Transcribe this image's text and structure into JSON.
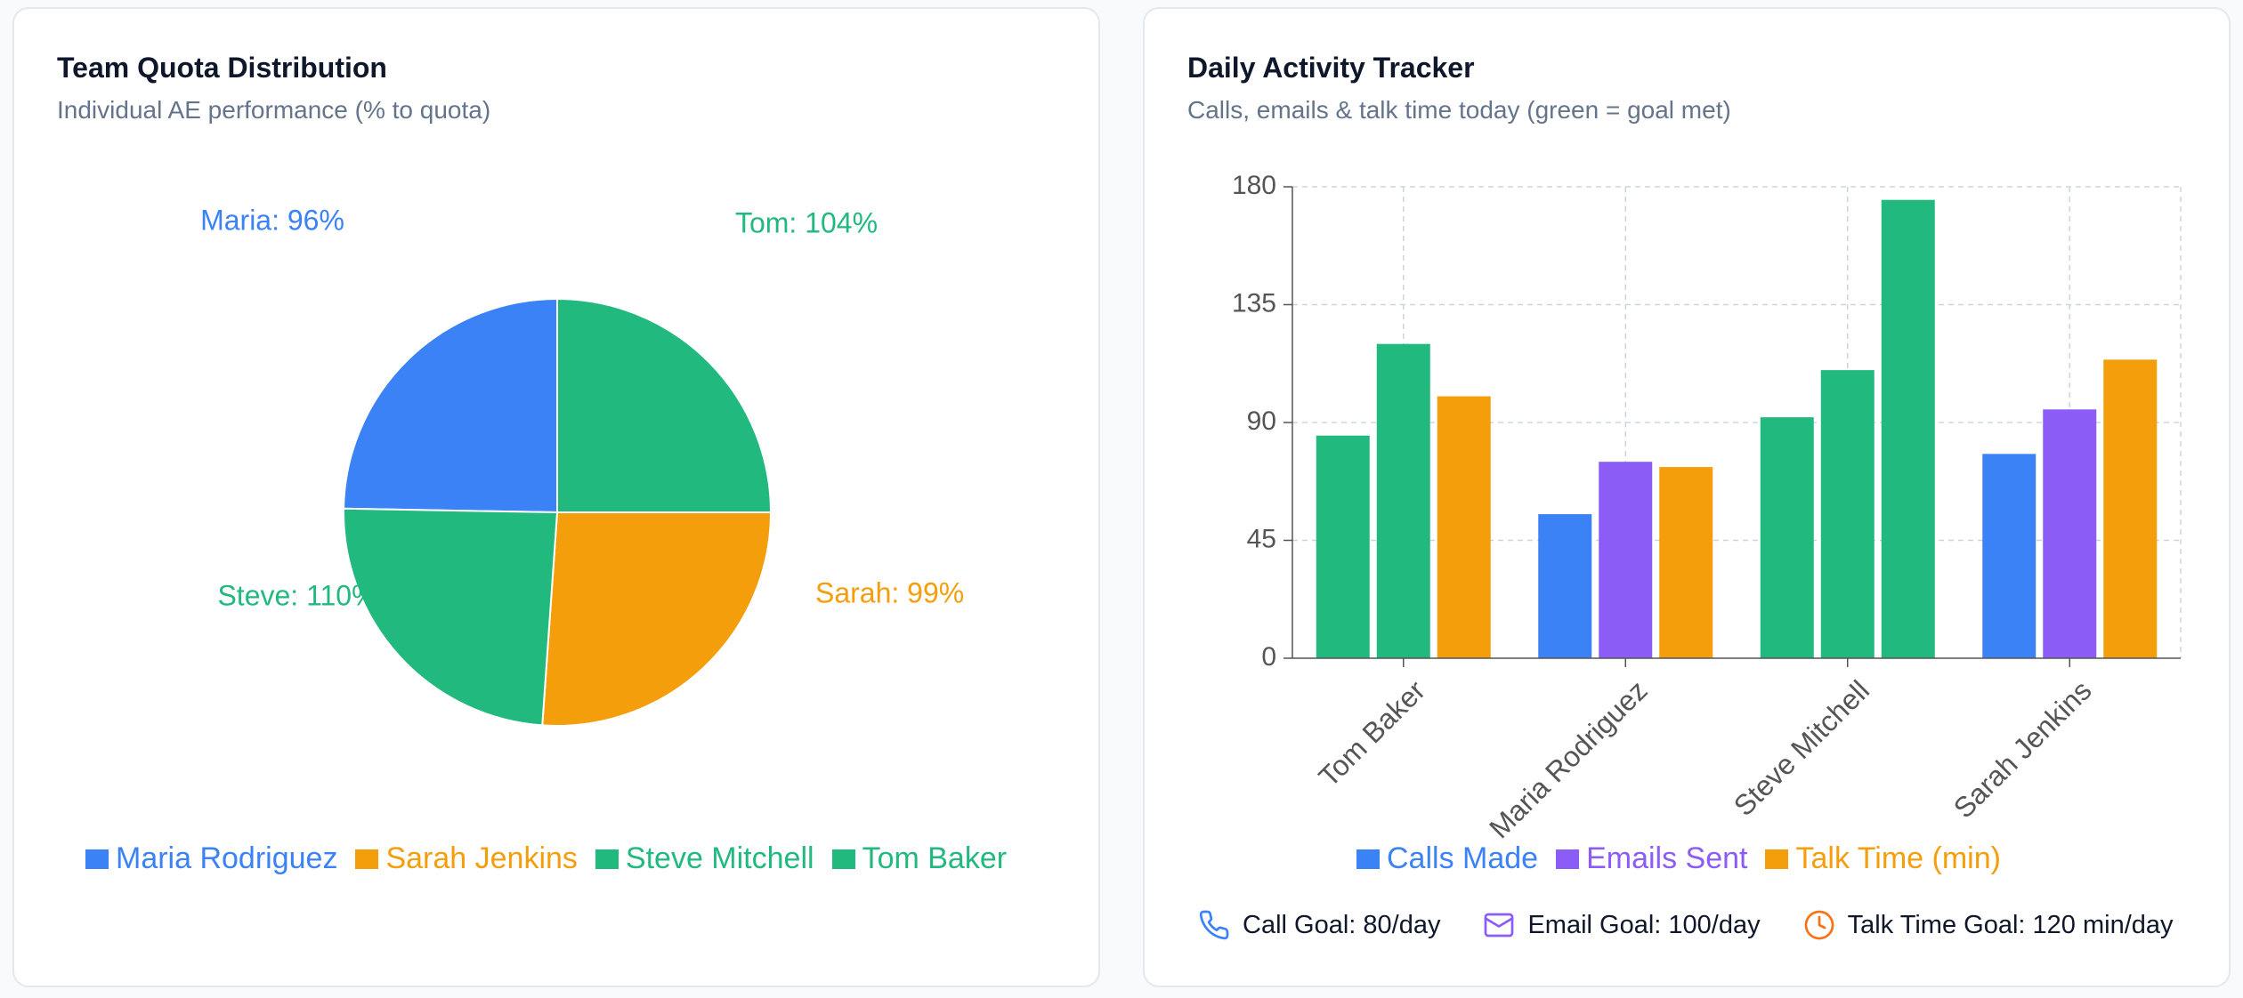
{
  "left_card": {
    "title": "Team Quota Distribution",
    "subtitle": "Individual AE performance (% to quota)"
  },
  "right_card": {
    "title": "Daily Activity Tracker",
    "subtitle": "Calls, emails & talk time today (green = goal met)"
  },
  "goals": [
    {
      "icon": "phone-icon",
      "color": "#3b82f6",
      "label": "Call Goal: 80/day"
    },
    {
      "icon": "mail-icon",
      "color": "#8b5cf6",
      "label": "Email Goal: 100/day"
    },
    {
      "icon": "clock-icon",
      "color": "#f97316",
      "label": "Talk Time Goal: 120 min/day"
    }
  ],
  "chart_data": [
    {
      "type": "pie",
      "title": "Team Quota Distribution",
      "slices": [
        {
          "name": "Maria Rodriguez",
          "label": "Maria: 96%",
          "value": 96,
          "color": "#3b82f6"
        },
        {
          "name": "Sarah Jenkins",
          "label": "Sarah: 99%",
          "value": 99,
          "color": "#f59e0b"
        },
        {
          "name": "Steve Mitchell",
          "label": "Steve: 110%",
          "value": 110,
          "color": "#22b97f"
        },
        {
          "name": "Tom Baker",
          "label": "Tom: 104%",
          "value": 104,
          "color": "#22b97f"
        }
      ],
      "legend": [
        {
          "label": "Maria Rodriguez",
          "color": "#3b82f6"
        },
        {
          "label": "Sarah Jenkins",
          "color": "#f59e0b"
        },
        {
          "label": "Steve Mitchell",
          "color": "#22b97f"
        },
        {
          "label": "Tom Baker",
          "color": "#22b97f"
        }
      ],
      "legend_position": "bottom"
    },
    {
      "type": "bar",
      "title": "Daily Activity Tracker",
      "categories": [
        "Tom Baker",
        "Maria Rodriguez",
        "Steve Mitchell",
        "Sarah Jenkins"
      ],
      "series": [
        {
          "name": "Calls Made",
          "color": "#3b82f6",
          "values": [
            85,
            55,
            92,
            78
          ],
          "bar_colors": [
            "#22b97f",
            "#3b82f6",
            "#22b97f",
            "#3b82f6"
          ]
        },
        {
          "name": "Emails Sent",
          "color": "#8b5cf6",
          "values": [
            120,
            75,
            110,
            95
          ],
          "bar_colors": [
            "#22b97f",
            "#8b5cf6",
            "#22b97f",
            "#8b5cf6"
          ]
        },
        {
          "name": "Talk Time (min)",
          "color": "#f59e0b",
          "values": [
            100,
            73,
            175,
            114
          ],
          "bar_colors": [
            "#f59e0b",
            "#f59e0b",
            "#22b97f",
            "#f59e0b"
          ]
        }
      ],
      "ylim": [
        0,
        180
      ],
      "yticks": [
        0,
        45,
        90,
        135,
        180
      ],
      "grid": true,
      "legend_position": "bottom"
    }
  ]
}
